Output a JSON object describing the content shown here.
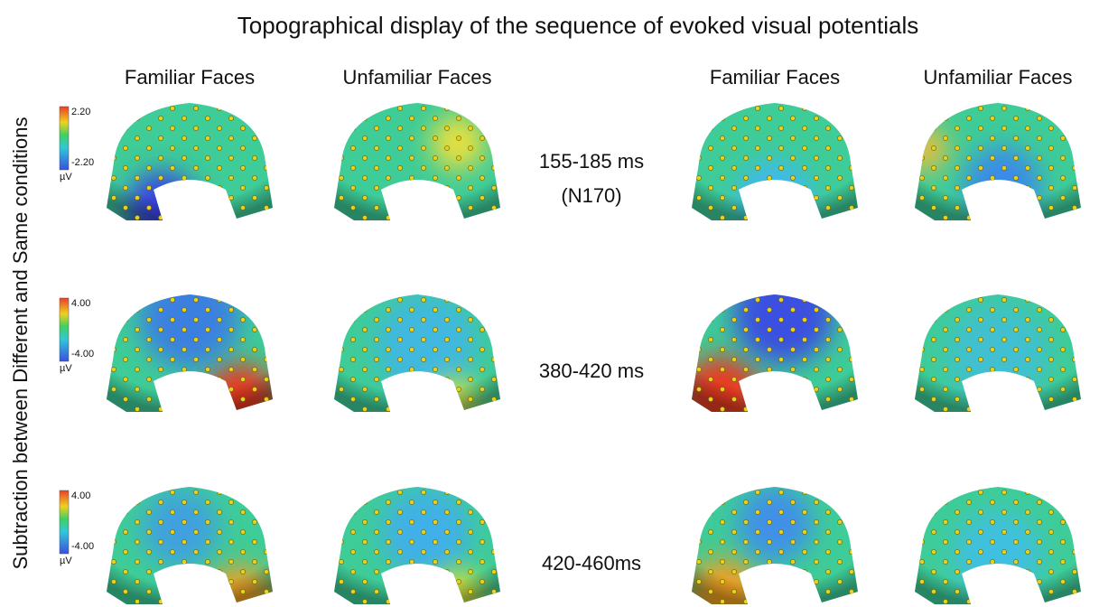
{
  "title": "Topographical display of the sequence of evoked visual potentials",
  "side_label": "Subtraction between Different and Same conditions",
  "columns": [
    "Familiar Faces",
    "Unfamiliar Faces",
    "Familiar Faces",
    "Unfamiliar Faces"
  ],
  "rows": [
    {
      "time": "155-185 ms",
      "component": "(N170)",
      "scale_max": "2.20",
      "scale_min": "-2.20",
      "unit": "µV"
    },
    {
      "time": "380-420 ms",
      "scale_max": "4.00",
      "scale_min": "-4.00",
      "unit": "µV"
    },
    {
      "time": "420-460ms",
      "scale_max": "4.00",
      "scale_min": "-4.00",
      "unit": "µV"
    }
  ]
}
